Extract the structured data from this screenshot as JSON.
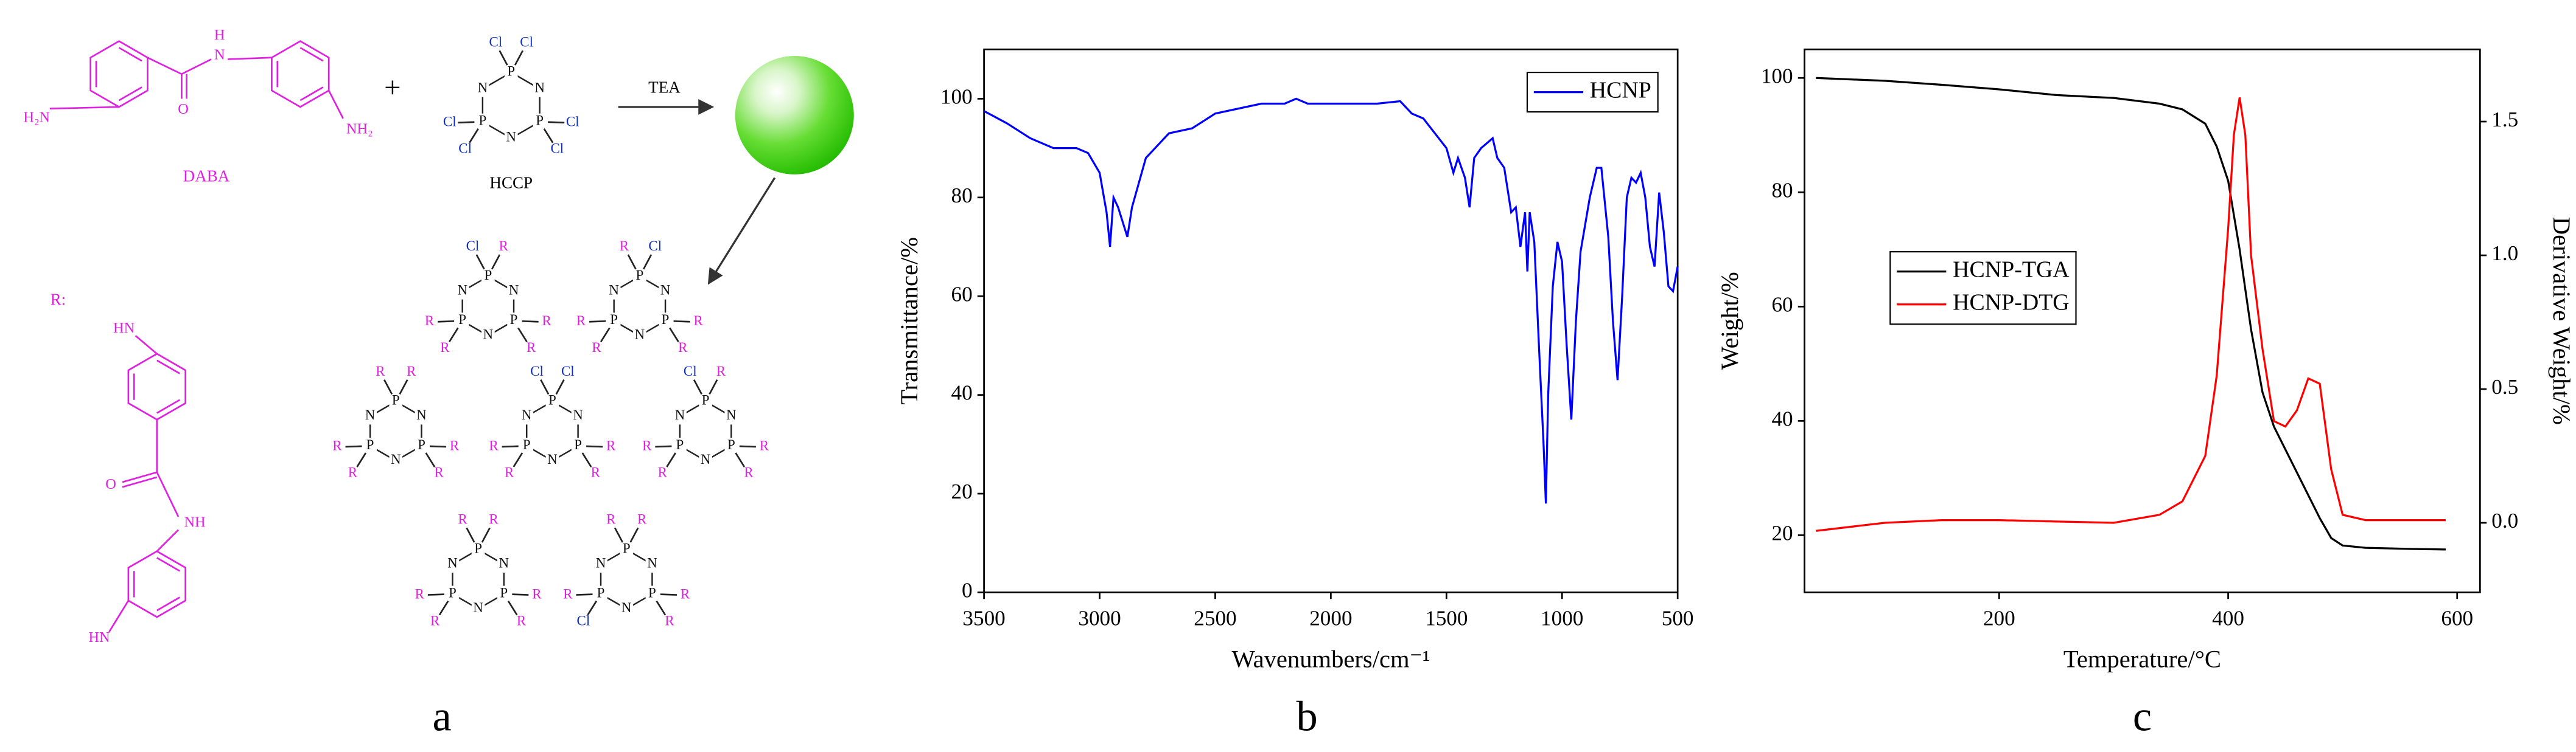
{
  "diagram": {
    "panel_label": "a",
    "plus": "+",
    "labels": {
      "daba": "DABA",
      "hccp": "HCCP",
      "reagent": "TEA",
      "substituent": "R:"
    },
    "atoms": {
      "P": "P",
      "N": "N",
      "Cl": "Cl",
      "R": "R",
      "O": "O",
      "H": "H",
      "HN": "HN",
      "NH": "NH",
      "H2N": "H₂N",
      "NH2": "NH₂"
    }
  },
  "chart_data": [
    {
      "type": "line",
      "panel_label": "b",
      "xlabel": "Wavenumbers/cm⁻¹",
      "ylabel": "Transmittance/%",
      "xlim": [
        3500,
        500
      ],
      "ylim": [
        0,
        110
      ],
      "xticks": [
        3500,
        3000,
        2500,
        2000,
        1500,
        1000,
        500
      ],
      "yticks": [
        0,
        20,
        40,
        60,
        80,
        100
      ],
      "legend": "upper right",
      "x": [
        3500,
        3400,
        3300,
        3200,
        3100,
        3050,
        3000,
        2970,
        2955,
        2940,
        2920,
        2900,
        2880,
        2860,
        2800,
        2700,
        2600,
        2500,
        2400,
        2300,
        2200,
        2150,
        2100,
        2000,
        1900,
        1800,
        1700,
        1650,
        1600,
        1550,
        1500,
        1470,
        1450,
        1420,
        1400,
        1380,
        1350,
        1300,
        1280,
        1250,
        1220,
        1200,
        1180,
        1160,
        1150,
        1140,
        1120,
        1100,
        1080,
        1070,
        1060,
        1040,
        1020,
        1000,
        980,
        960,
        940,
        920,
        880,
        850,
        830,
        800,
        780,
        760,
        740,
        720,
        700,
        680,
        660,
        640,
        620,
        600,
        580,
        560,
        540,
        520,
        500
      ],
      "series": [
        {
          "name": "HCNP",
          "color": "#0000ff",
          "values": [
            97.5,
            95,
            92,
            90,
            90,
            89,
            85,
            77,
            70,
            80,
            78,
            75,
            72,
            78,
            88,
            93,
            94,
            97,
            98,
            99,
            99,
            100,
            99,
            99,
            99,
            99,
            99.5,
            97,
            96,
            93,
            90,
            85,
            88,
            84,
            78,
            88,
            90,
            92,
            88,
            86,
            77,
            78,
            70,
            77,
            65,
            77,
            71,
            50,
            30,
            18,
            40,
            62,
            71,
            67,
            50,
            35,
            55,
            69,
            80,
            86,
            86,
            72,
            55,
            43,
            60,
            80,
            84,
            83,
            85,
            80,
            70,
            66,
            81,
            73,
            62,
            61,
            66
          ]
        }
      ]
    },
    {
      "type": "line",
      "panel_label": "c",
      "xlabel": "Temperature/°C",
      "ylabel": "Weight/%",
      "y2label": "Derivative Weight/%",
      "xlim": [
        30,
        620
      ],
      "ylim": [
        10,
        105
      ],
      "y2lim": [
        -0.26,
        1.77
      ],
      "xticks": [
        200,
        400,
        600
      ],
      "yticks": [
        20,
        40,
        60,
        80,
        100
      ],
      "y2ticks": [
        {
          "value": 0,
          "label": "0.0"
        },
        {
          "value": 0.5,
          "label": "0.5"
        },
        {
          "value": 1,
          "label": "1.0"
        },
        {
          "value": 1.5,
          "label": "1.5"
        }
      ],
      "legend": "center left",
      "x": [
        40,
        100,
        150,
        200,
        250,
        300,
        340,
        360,
        380,
        390,
        400,
        405,
        410,
        415,
        420,
        430,
        440,
        450,
        460,
        470,
        480,
        490,
        500,
        520,
        560,
        590
      ],
      "series": [
        {
          "name": "HCNP-TGA",
          "color": "#000000",
          "values": [
            100,
            99.5,
            98.8,
            98,
            97,
            96.5,
            95.5,
            94.5,
            92,
            88,
            82,
            76,
            70,
            63,
            56,
            45,
            39,
            35,
            31,
            27,
            23,
            19.5,
            18.2,
            17.8,
            17.6,
            17.5
          ]
        },
        {
          "name": "HCNP-DTG",
          "color": "#ff0000",
          "axis": "y2",
          "values": [
            -0.03,
            0,
            0.01,
            0.01,
            0.005,
            0,
            0.03,
            0.08,
            0.25,
            0.55,
            1.1,
            1.45,
            1.59,
            1.45,
            1,
            0.65,
            0.38,
            0.36,
            0.42,
            0.54,
            0.52,
            0.2,
            0.03,
            0.01,
            0.01,
            0.01
          ]
        }
      ]
    }
  ]
}
